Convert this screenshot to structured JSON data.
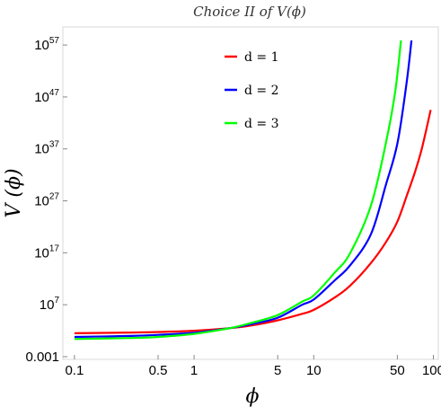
{
  "chart_data": {
    "type": "line",
    "title": "Choice II of V(ϕ)",
    "xlabel": "ϕ",
    "ylabel": "V (ϕ)",
    "x_scale": "log",
    "y_scale": "log",
    "xlim": [
      0.08,
      110
    ],
    "ylim": [
      0.0003,
      3e+60
    ],
    "x_ticks": [
      {
        "value": 0.1,
        "label": "0.1"
      },
      {
        "value": 0.5,
        "label": "0.5"
      },
      {
        "value": 1,
        "label": "1"
      },
      {
        "value": 5,
        "label": "5"
      },
      {
        "value": 10,
        "label": "10"
      },
      {
        "value": 50,
        "label": "50"
      },
      {
        "value": 100,
        "label": "100"
      }
    ],
    "y_ticks": [
      {
        "value": 0.001,
        "label": "0.001",
        "base": "",
        "exp": ""
      },
      {
        "value": 10000000.0,
        "label": "10^7",
        "base": "10",
        "exp": "7"
      },
      {
        "value": 1e+17,
        "label": "10^17",
        "base": "10",
        "exp": "17"
      },
      {
        "value": 1e+27,
        "label": "10^27",
        "base": "10",
        "exp": "27"
      },
      {
        "value": 1e+37,
        "label": "10^37",
        "base": "10",
        "exp": "37"
      },
      {
        "value": 1e+47,
        "label": "10^47",
        "base": "10",
        "exp": "47"
      },
      {
        "value": 1e+57,
        "label": "10^57",
        "base": "10",
        "exp": "57"
      }
    ],
    "grid": false,
    "legend_position": "top-center",
    "series": [
      {
        "name": "d = 1",
        "color": "#ff0000",
        "x": [
          0.1,
          0.3,
          0.5,
          1,
          2,
          3,
          5,
          8,
          10,
          15,
          20,
          30,
          40,
          50,
          60,
          70,
          80,
          95
        ],
        "y": [
          32.0,
          45.0,
          56.0,
          100.0,
          320.0,
          1000.0,
          10000.0,
          180000.0,
          1000000.0,
          250000000.0,
          40000000000.0,
          1000000000000000.0,
          1e+19,
          1e+23,
          1e+28,
          3e+32,
          1e+37,
          3.2e+44
        ]
      },
      {
        "name": "d = 2",
        "color": "#0000ff",
        "x": [
          0.1,
          0.3,
          0.5,
          1,
          2,
          3,
          5,
          8,
          10,
          15,
          20,
          30,
          40,
          50,
          60,
          66
        ],
        "y": [
          6.3,
          10.0,
          16.0,
          40.0,
          320.0,
          1800.0,
          32000.0,
          10000000.0,
          100000000.0,
          500000000000.0,
          320000000000000.0,
          3.2e+20,
          1e+30,
          1e+38,
          1e+50,
          3e+58
        ]
      },
      {
        "name": "d = 3",
        "color": "#00ff00",
        "x": [
          0.1,
          0.3,
          0.5,
          1,
          2,
          3,
          5,
          8,
          10,
          15,
          20,
          30,
          40,
          48,
          54
        ],
        "y": [
          2.5,
          4.0,
          6.3,
          25.0,
          320.0,
          3200.0,
          100000.0,
          40000000.0,
          630000000.0,
          16000000000000.0,
          6.3e+16,
          1e+26,
          1e+38,
          1e+48,
          3e+58
        ]
      }
    ]
  }
}
